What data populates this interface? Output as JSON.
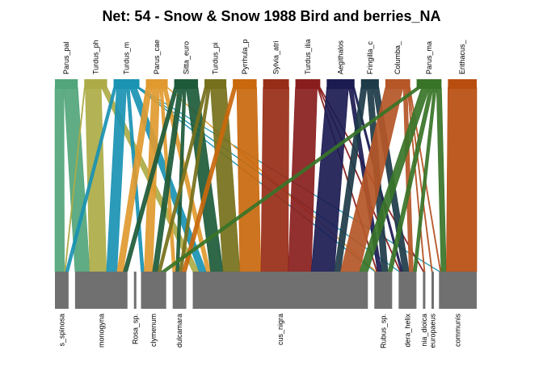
{
  "title": "Net: 54 - Snow & Snow 1988 Bird and berries_NA",
  "higher_nodes": [
    {
      "label": "Parus_pal",
      "color": "#52a57a"
    },
    {
      "label": "Turdus_ph",
      "color": "#acab47"
    },
    {
      "label": "Turdus_m",
      "color": "#1a93b3"
    },
    {
      "label": "Parus_cae",
      "color": "#e09a30"
    },
    {
      "label": "Sitta_euro",
      "color": "#1d5a3a"
    },
    {
      "label": "Turdus_pi",
      "color": "#76701c"
    },
    {
      "label": "Pyrrhula_p",
      "color": "#c9680d"
    },
    {
      "label": "Sylvia_atri",
      "color": "#982d17"
    },
    {
      "label": "Turdus_ilia",
      "color": "#891d1d"
    },
    {
      "label": "Aegithalos",
      "color": "#1b1b52"
    },
    {
      "label": "Fringilla_c",
      "color": "#1d3b48"
    },
    {
      "label": "Columba_",
      "color": "#b55627"
    },
    {
      "label": "Parus_ma",
      "color": "#387428"
    },
    {
      "label": "Erithacus_",
      "color": "#b84d10"
    }
  ],
  "lower_nodes": [
    {
      "label": "s_spinosa"
    },
    {
      "label": "monogyna"
    },
    {
      "label": "Rosa_sp."
    },
    {
      "label": "clymenum"
    },
    {
      "label": "dulcamara"
    },
    {
      "label": "cus_nigra"
    },
    {
      "label": "Rubus_sp."
    },
    {
      "label": "dera_helix"
    },
    {
      "label": "nia_dioica"
    },
    {
      "label": "europaeus"
    },
    {
      "label": "communis"
    }
  ],
  "links": [
    {
      "from": 0,
      "to": 0,
      "w": 9
    },
    {
      "from": 0,
      "to": 1,
      "w": 14
    },
    {
      "from": 1,
      "to": 0,
      "w": 1
    },
    {
      "from": 1,
      "to": 1,
      "w": 16
    },
    {
      "from": 1,
      "to": 5,
      "w": 6
    },
    {
      "from": 2,
      "to": 0,
      "w": 3
    },
    {
      "from": 2,
      "to": 1,
      "w": 10
    },
    {
      "from": 2,
      "to": 3,
      "w": 3
    },
    {
      "from": 2,
      "to": 5,
      "w": 7
    },
    {
      "from": 2,
      "to": 6,
      "w": 1
    },
    {
      "from": 2,
      "to": 7,
      "w": 1
    },
    {
      "from": 2,
      "to": 10,
      "w": 1
    },
    {
      "from": 3,
      "to": 1,
      "w": 6
    },
    {
      "from": 3,
      "to": 3,
      "w": 8
    },
    {
      "from": 3,
      "to": 4,
      "w": 3
    },
    {
      "from": 3,
      "to": 5,
      "w": 4
    },
    {
      "from": 3,
      "to": 6,
      "w": 1
    },
    {
      "from": 4,
      "to": 1,
      "w": 4
    },
    {
      "from": 4,
      "to": 3,
      "w": 5
    },
    {
      "from": 4,
      "to": 4,
      "w": 3
    },
    {
      "from": 4,
      "to": 5,
      "w": 12
    },
    {
      "from": 5,
      "to": 3,
      "w": 3
    },
    {
      "from": 5,
      "to": 4,
      "w": 3
    },
    {
      "from": 5,
      "to": 5,
      "w": 16
    },
    {
      "from": 6,
      "to": 4,
      "w": 4
    },
    {
      "from": 6,
      "to": 5,
      "w": 20
    },
    {
      "from": 7,
      "to": 5,
      "w": 26
    },
    {
      "from": 8,
      "to": 5,
      "w": 22
    },
    {
      "from": 8,
      "to": 6,
      "w": 1
    },
    {
      "from": 8,
      "to": 7,
      "w": 1
    },
    {
      "from": 8,
      "to": 8,
      "w": 1
    },
    {
      "from": 9,
      "to": 5,
      "w": 22
    },
    {
      "from": 9,
      "to": 6,
      "w": 4
    },
    {
      "from": 9,
      "to": 7,
      "w": 2
    },
    {
      "from": 10,
      "to": 5,
      "w": 6
    },
    {
      "from": 10,
      "to": 6,
      "w": 6
    },
    {
      "from": 10,
      "to": 7,
      "w": 6
    },
    {
      "from": 11,
      "to": 5,
      "w": 18
    },
    {
      "from": 11,
      "to": 7,
      "w": 4
    },
    {
      "from": 11,
      "to": 8,
      "w": 1
    },
    {
      "from": 11,
      "to": 9,
      "w": 1
    },
    {
      "from": 11,
      "to": 10,
      "w": 1
    },
    {
      "from": 12,
      "to": 3,
      "w": 5
    },
    {
      "from": 12,
      "to": 5,
      "w": 8
    },
    {
      "from": 12,
      "to": 6,
      "w": 4
    },
    {
      "from": 12,
      "to": 7,
      "w": 3
    },
    {
      "from": 12,
      "to": 10,
      "w": 5
    },
    {
      "from": 13,
      "to": 10,
      "w": 29
    }
  ],
  "lower_color": "#707070"
}
